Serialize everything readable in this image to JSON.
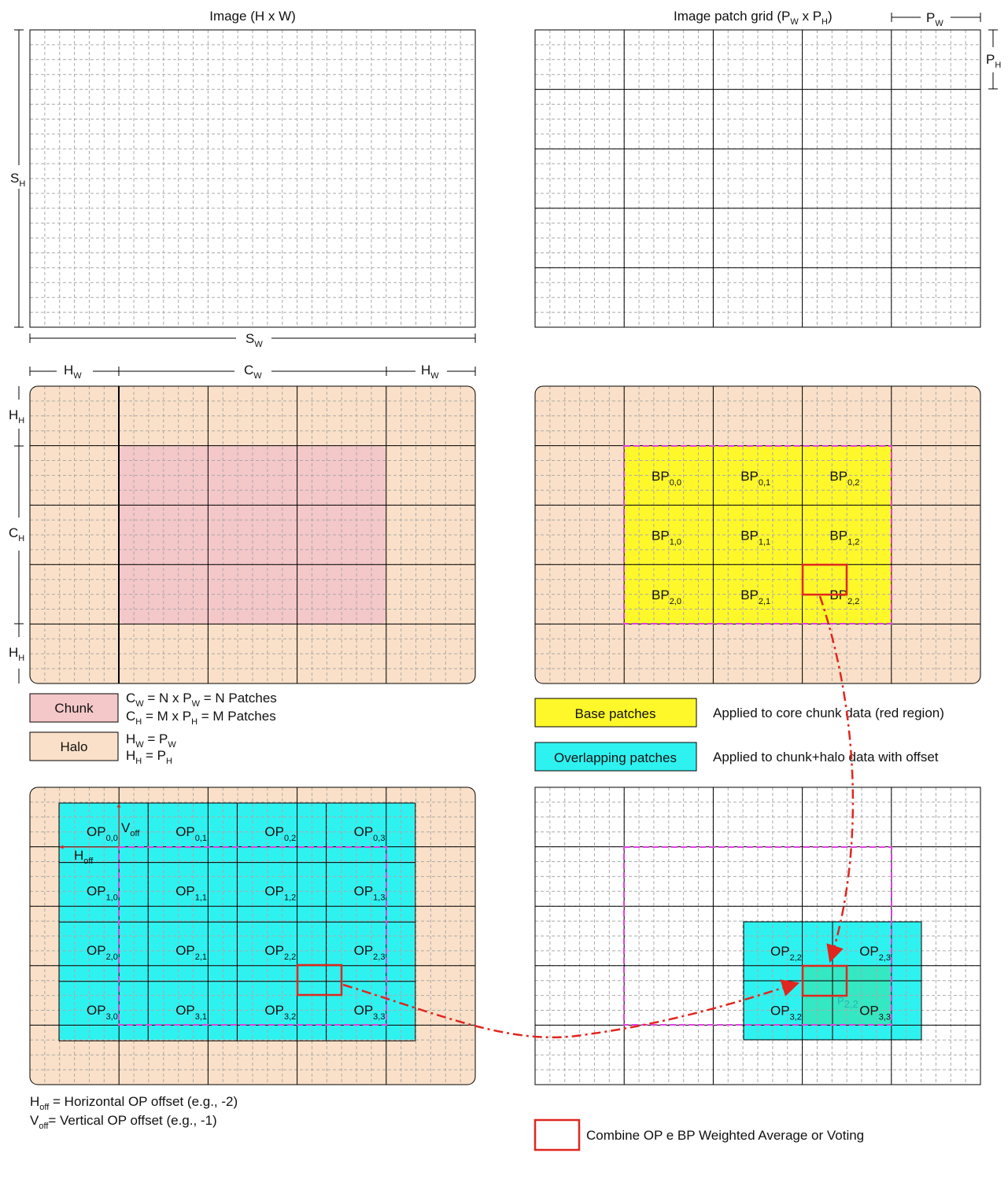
{
  "panels": {
    "image": {
      "title": "Image (H x W)",
      "dim_h": {
        "main": "S",
        "sub": "H"
      },
      "dim_w": {
        "main": "S",
        "sub": "W"
      }
    },
    "patch_grid": {
      "title_prefix": "Image patch grid (P",
      "title_sub1": "W",
      "title_mid": " x P",
      "title_sub2": "H",
      "title_suffix": ")",
      "pw": {
        "main": "P",
        "sub": "W"
      },
      "ph": {
        "main": "P",
        "sub": "H"
      }
    },
    "chunk_halo": {
      "hw": {
        "main": "H",
        "sub": "W"
      },
      "cw": {
        "main": "C",
        "sub": "W"
      },
      "hh": {
        "main": "H",
        "sub": "H"
      },
      "ch": {
        "main": "C",
        "sub": "H"
      }
    },
    "base_patches": {
      "cells": [
        {
          "main": "BP",
          "sub": "0,0"
        },
        {
          "main": "BP",
          "sub": "0,1"
        },
        {
          "main": "BP",
          "sub": "0,2"
        },
        {
          "main": "BP",
          "sub": "1,0"
        },
        {
          "main": "BP",
          "sub": "1,1"
        },
        {
          "main": "BP",
          "sub": "1,2"
        },
        {
          "main": "BP",
          "sub": "2,0"
        },
        {
          "main": "BP",
          "sub": "2,1"
        },
        {
          "main": "BP",
          "sub": "2,2"
        }
      ]
    },
    "overlapping": {
      "cells": [
        {
          "main": "OP",
          "sub": "0,0"
        },
        {
          "main": "OP",
          "sub": "0,1"
        },
        {
          "main": "OP",
          "sub": "0,2"
        },
        {
          "main": "OP",
          "sub": "0,3"
        },
        {
          "main": "OP",
          "sub": "1,0"
        },
        {
          "main": "OP",
          "sub": "1,1"
        },
        {
          "main": "OP",
          "sub": "1,2"
        },
        {
          "main": "OP",
          "sub": "1,3"
        },
        {
          "main": "OP",
          "sub": "2,0"
        },
        {
          "main": "OP",
          "sub": "2,1"
        },
        {
          "main": "OP",
          "sub": "2,2"
        },
        {
          "main": "OP",
          "sub": "2,3"
        },
        {
          "main": "OP",
          "sub": "3,0"
        },
        {
          "main": "OP",
          "sub": "3,1"
        },
        {
          "main": "OP",
          "sub": "3,2"
        },
        {
          "main": "OP",
          "sub": "3,3"
        }
      ],
      "voff": {
        "main": "V",
        "sub": "off"
      },
      "hoff": {
        "main": "H",
        "sub": "off"
      }
    },
    "combined": {
      "cells": [
        {
          "main": "OP",
          "sub": "2,2"
        },
        {
          "main": "OP",
          "sub": "2,3"
        },
        {
          "main": "OP",
          "sub": "3,2"
        },
        {
          "main": "OP",
          "sub": "3,3"
        }
      ],
      "faint": {
        "main": "P",
        "sub": "2,2"
      }
    }
  },
  "legend": {
    "chunk": {
      "label": "Chunk",
      "eq1": {
        "a": "C",
        "a_sub": "W",
        "b": " = N x P",
        "b_sub": "W",
        "c": " = N Patches"
      },
      "eq2": {
        "a": "C",
        "a_sub": "H",
        "b": " = M x P",
        "b_sub": "H",
        "c": " = M Patches"
      }
    },
    "halo": {
      "label": "Halo",
      "eq1": {
        "a": "H",
        "a_sub": "W",
        "b": " = P",
        "b_sub": "W"
      },
      "eq2": {
        "a": "H",
        "a_sub": "H",
        "b": " = P",
        "b_sub": "H"
      }
    },
    "base": {
      "label": "Base patches",
      "desc": "Applied to core chunk data (red region)"
    },
    "overlap": {
      "label": "Overlapping patches",
      "desc": "Applied to chunk+halo data with offset"
    },
    "offsets": {
      "h": {
        "main": "H",
        "sub": "off",
        "rest": " = Horizontal OP offset (e.g., -2)"
      },
      "v": {
        "main": "V",
        "sub": "off",
        "rest": "= Vertical OP offset (e.g., -1)"
      }
    },
    "combine": {
      "label": "Combine OP e BP Weighted Average or Voting"
    }
  },
  "colors": {
    "halo": "#fae0c8",
    "chunk": "#f4c7c9",
    "base": "#fef82a",
    "overlap": "#2ef2f0",
    "overlap_merged": "#33e8c2",
    "marker": "#e0261f",
    "outline": "#e040e0"
  }
}
